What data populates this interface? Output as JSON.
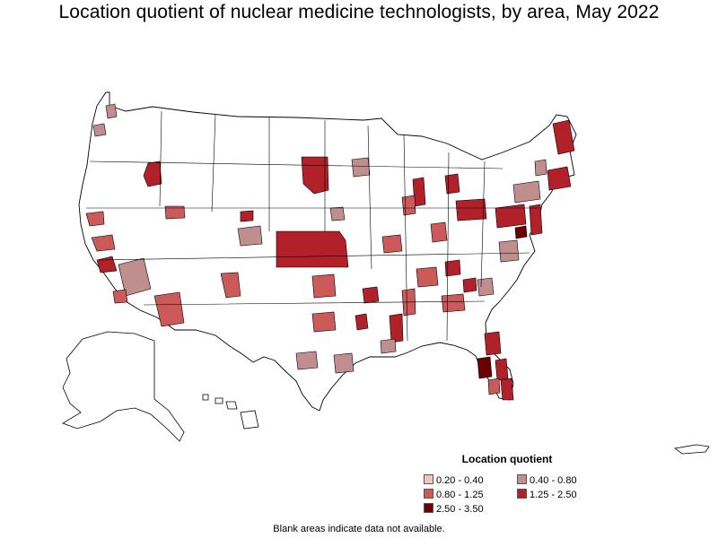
{
  "title": "Location quotient of nuclear medicine technologists, by area, May 2022",
  "legend": {
    "title": "Location quotient",
    "items": [
      {
        "label": "0.20 - 0.40",
        "color": "#f2c4c4"
      },
      {
        "label": "0.40 - 0.80",
        "color": "#c08e8e"
      },
      {
        "label": "0.80 - 1.25",
        "color": "#cc5a5a"
      },
      {
        "label": "1.25 - 2.50",
        "color": "#b22029"
      },
      {
        "label": "2.50 - 3.50",
        "color": "#6b0000"
      }
    ]
  },
  "footnote": "Blank areas indicate data not available.",
  "colors": {
    "background": "#ffffff",
    "border": "#000000",
    "no_data": "#ffffff"
  },
  "map_regions": [
    {
      "name": "contiguous-us"
    },
    {
      "name": "alaska"
    },
    {
      "name": "hawaii"
    },
    {
      "name": "puerto-rico"
    }
  ]
}
